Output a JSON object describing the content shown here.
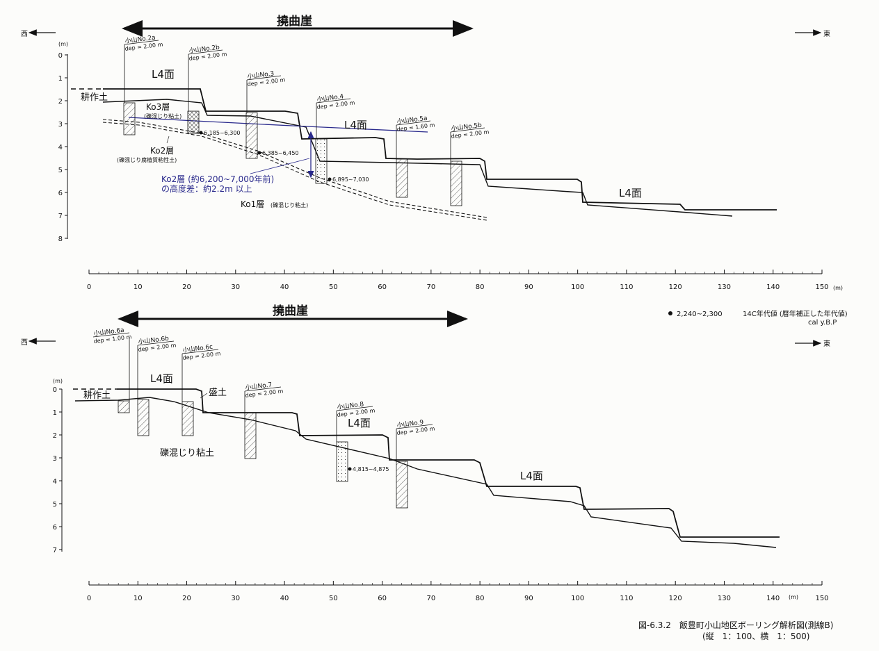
{
  "top": {
    "flexure_label": "撓曲崖",
    "west": "西",
    "east": "東",
    "y_unit": "(m)",
    "y_ticks": [
      "0",
      "1",
      "2",
      "3",
      "4",
      "5",
      "6",
      "7",
      "8"
    ],
    "x_ticks": [
      "0",
      "10",
      "20",
      "30",
      "40",
      "50",
      "60",
      "70",
      "80",
      "90",
      "100",
      "110",
      "120",
      "130",
      "140",
      "150"
    ],
    "x_unit": "(m)",
    "surface_labels": [
      "L4面",
      "L4面",
      "L4面"
    ],
    "cultivated_soil": "耕作土",
    "ko3": "Ko3層",
    "ko3_desc": "(礫混じり粘土)",
    "ko2": "Ko2層",
    "ko2_desc": "(礫混じり腐植質粘性土)",
    "ko2_note_1": "Ko2層 (約6,200~7,000年前)",
    "ko2_note_2": "の高度差：約2.2m 以上",
    "ko1": "Ko1層",
    "ko1_desc": "(礫混じり粘土)",
    "dates": [
      "6,185~6,300",
      "6,385~6,450",
      "6,895~7,030"
    ],
    "boreholes": [
      {
        "name": "小山No.2a",
        "dep": "dep = 2.00 m"
      },
      {
        "name": "小山No.2b",
        "dep": "dep = 2.00 m"
      },
      {
        "name": "小山No.3",
        "dep": "dep = 2.00 m"
      },
      {
        "name": "小山No.4",
        "dep": "dep = 2.00 m"
      },
      {
        "name": "小山No.5a",
        "dep": "dep = 1.60 m"
      },
      {
        "name": "小山No.5b",
        "dep": "dep = 2.00 m"
      }
    ]
  },
  "legend": {
    "sample": "2,240~2,300",
    "desc": "14C年代値 (暦年補正した年代値)",
    "unit": "cal y.B.P"
  },
  "bottom": {
    "flexure_label": "撓曲崖",
    "west": "西",
    "east": "東",
    "y_unit": "(m)",
    "y_ticks": [
      "0",
      "1",
      "2",
      "3",
      "4",
      "5",
      "6",
      "7"
    ],
    "x_ticks": [
      "0",
      "10",
      "20",
      "30",
      "40",
      "50",
      "60",
      "70",
      "80",
      "90",
      "100",
      "110",
      "120",
      "130",
      "140",
      "150"
    ],
    "x_unit": "(m)",
    "surface_labels": [
      "L4面",
      "L4面",
      "L4面"
    ],
    "cultivated_soil": "耕作土",
    "fill_soil": "盛土",
    "gravel_clay": "礫混じり粘土",
    "dates": [
      "4,815~4,875"
    ],
    "boreholes": [
      {
        "name": "小山No.6a",
        "dep": "dep = 1.00 m"
      },
      {
        "name": "小山No.6b",
        "dep": "dep = 2.00 m"
      },
      {
        "name": "小山No.6c",
        "dep": "dep = 2.00 m"
      },
      {
        "name": "小山No.7",
        "dep": "dep = 2.00 m"
      },
      {
        "name": "小山No.8",
        "dep": "dep = 2.00 m"
      },
      {
        "name": "小山No.9",
        "dep": "dep = 2.00 m"
      }
    ]
  },
  "caption": {
    "line1": "図-6.3.2　飯豊町小山地区ボーリング解析図(測線B)",
    "line2": "(縦　1：100、横　1：500)"
  }
}
